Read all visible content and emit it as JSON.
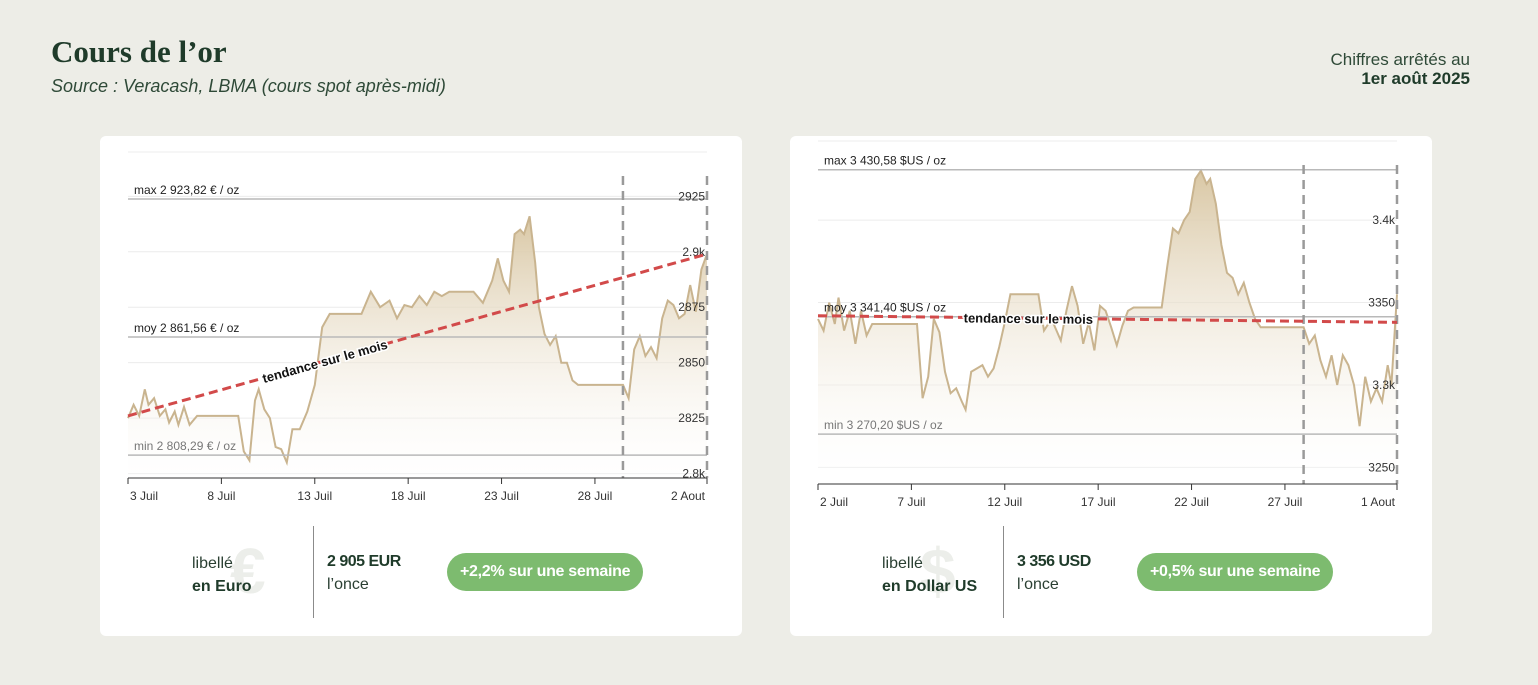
{
  "header": {
    "title": "Cours de l’or",
    "subtitle": "Source : Veracash, LBMA (cours spot après-midi)",
    "as_of_label": "Chiffres arrêtés au",
    "as_of_date": "1er août 2025"
  },
  "colors": {
    "background": "#edede7",
    "area_line": "#c9b48f",
    "area_fill_top": "#d9c7a4",
    "trend": "#d24a4a",
    "badge": "#7dbb6f",
    "title": "#1f3b2a"
  },
  "chart_data": [
    {
      "type": "area",
      "currency": "EUR",
      "x_ticks": [
        "3 Juil",
        "8 Juil",
        "13 Juil",
        "18 Juil",
        "23 Juil",
        "28 Juil",
        "2 Aout"
      ],
      "x_range": [
        0,
        31
      ],
      "y_ticks": [
        "2925",
        "2.9k",
        "2875",
        "2850",
        "2825",
        "2.8k"
      ],
      "y_tick_values": [
        2925,
        2900,
        2875,
        2850,
        2825,
        2800
      ],
      "ylim": [
        2798,
        2945
      ],
      "reference_lines": [
        {
          "label": "max 2 923,82 € / oz",
          "value": 2923.82
        },
        {
          "label": "moy 2 861,56 € / oz",
          "value": 2861.56
        },
        {
          "label": "min 2 808,29 € / oz",
          "value": 2808.29
        }
      ],
      "trend": {
        "label": "tendance sur le mois",
        "x": [
          0,
          31
        ],
        "y": [
          2826,
          2899
        ]
      },
      "vlines": [
        26.5,
        31
      ],
      "x": [
        0,
        0.3,
        0.6,
        0.9,
        1.1,
        1.4,
        1.7,
        2.0,
        2.2,
        2.5,
        2.7,
        3.0,
        3.3,
        3.7,
        4.1,
        4.5,
        5.0,
        5.5,
        5.9,
        6.2,
        6.5,
        6.8,
        7.0,
        7.3,
        7.6,
        7.9,
        8.2,
        8.5,
        8.8,
        9.2,
        9.6,
        10.0,
        10.4,
        10.8,
        11.3,
        11.6,
        12.0,
        12.5,
        13.0,
        13.5,
        14.0,
        14.4,
        14.8,
        15.2,
        15.6,
        16.0,
        16.4,
        16.8,
        17.2,
        17.6,
        18.0,
        18.5,
        19.0,
        19.5,
        19.8,
        20.1,
        20.4,
        20.7,
        21.0,
        21.2,
        21.5,
        21.8,
        22.0,
        22.3,
        22.6,
        22.9,
        23.2,
        23.5,
        23.8,
        24.1,
        24.4,
        24.7,
        25.0,
        25.5,
        26.0,
        26.5,
        26.8,
        27.1,
        27.4,
        27.7,
        28.0,
        28.3,
        28.6,
        28.9,
        29.2,
        29.5,
        29.8,
        30.1,
        30.4,
        30.7,
        31.0
      ],
      "values": [
        2825,
        2831,
        2826,
        2838,
        2831,
        2834,
        2826,
        2829,
        2823,
        2828,
        2822,
        2830,
        2822,
        2826,
        2826,
        2826,
        2826,
        2826,
        2826,
        2810,
        2806,
        2833,
        2838,
        2829,
        2825,
        2812,
        2811,
        2805,
        2820,
        2820,
        2828,
        2840,
        2866,
        2872,
        2872,
        2872,
        2872,
        2872,
        2882,
        2875,
        2878,
        2870,
        2876,
        2875,
        2880,
        2876,
        2882,
        2880,
        2882,
        2882,
        2882,
        2882,
        2877,
        2887,
        2897,
        2887,
        2882,
        2908,
        2910,
        2908,
        2916,
        2895,
        2875,
        2863,
        2858,
        2862,
        2850,
        2850,
        2842,
        2840,
        2840,
        2840,
        2840,
        2840,
        2840,
        2840,
        2834,
        2856,
        2862,
        2853,
        2857,
        2852,
        2870,
        2878,
        2876,
        2870,
        2872,
        2885,
        2873,
        2892,
        2899
      ]
    },
    {
      "type": "area",
      "currency": "USD",
      "x_ticks": [
        "2 Juil",
        "7 Juil",
        "12 Juil",
        "17 Juil",
        "22 Juil",
        "27 Juil",
        "1 Aout"
      ],
      "x_range": [
        0,
        31
      ],
      "y_ticks": [
        "3.4k",
        "3350",
        "3.3k",
        "3250"
      ],
      "y_tick_values": [
        3400,
        3350,
        3300,
        3250
      ],
      "ylim": [
        3246,
        3448
      ],
      "reference_lines": [
        {
          "label": "max 3 430,58 $US / oz",
          "value": 3430.58
        },
        {
          "label": "moy 3 341,40 $US / oz",
          "value": 3341.4
        },
        {
          "label": "min 3 270,20 $US / oz",
          "value": 3270.2
        }
      ],
      "trend": {
        "label": "tendance sur le mois",
        "x": [
          0,
          31
        ],
        "y": [
          3342,
          3338
        ]
      },
      "vlines": [
        26,
        31
      ],
      "x": [
        0,
        0.3,
        0.6,
        0.9,
        1.1,
        1.4,
        1.7,
        2.0,
        2.3,
        2.6,
        2.9,
        3.2,
        3.6,
        4.0,
        4.5,
        5.0,
        5.3,
        5.6,
        5.9,
        6.2,
        6.5,
        6.8,
        7.1,
        7.4,
        7.7,
        7.9,
        8.2,
        8.5,
        8.8,
        9.1,
        9.4,
        9.7,
        10.0,
        10.3,
        10.6,
        10.9,
        11.2,
        11.5,
        11.8,
        12.1,
        12.5,
        13.0,
        13.3,
        13.6,
        13.9,
        14.2,
        14.5,
        14.8,
        15.1,
        15.4,
        15.7,
        16.0,
        16.3,
        16.6,
        16.9,
        17.2,
        17.5,
        17.8,
        18.1,
        18.4,
        18.7,
        19.0,
        19.3,
        19.6,
        19.9,
        20.2,
        20.5,
        20.8,
        21.0,
        21.3,
        21.6,
        21.9,
        22.2,
        22.5,
        22.8,
        23.1,
        23.4,
        23.7,
        24.0,
        24.3,
        24.6,
        25.0,
        25.5,
        26.0,
        26.3,
        26.6,
        26.9,
        27.2,
        27.5,
        27.8,
        28.1,
        28.4,
        28.7,
        29.0,
        29.3,
        29.6,
        29.9,
        30.2,
        30.5,
        30.7,
        31.0
      ],
      "values": [
        3340,
        3333,
        3350,
        3337,
        3353,
        3333,
        3345,
        3325,
        3345,
        3330,
        3337,
        3337,
        3337,
        3337,
        3337,
        3337,
        3337,
        3292,
        3305,
        3340,
        3332,
        3308,
        3295,
        3298,
        3290,
        3285,
        3308,
        3310,
        3312,
        3305,
        3310,
        3323,
        3338,
        3355,
        3355,
        3355,
        3355,
        3355,
        3355,
        3333,
        3340,
        3327,
        3345,
        3360,
        3348,
        3325,
        3338,
        3321,
        3348,
        3345,
        3335,
        3324,
        3336,
        3345,
        3347,
        3347,
        3347,
        3347,
        3347,
        3347,
        3372,
        3395,
        3392,
        3400,
        3405,
        3425,
        3430,
        3422,
        3425,
        3410,
        3385,
        3368,
        3365,
        3355,
        3362,
        3350,
        3340,
        3335,
        3335,
        3335,
        3335,
        3335,
        3335,
        3335,
        3325,
        3330,
        3315,
        3305,
        3318,
        3300,
        3318,
        3312,
        3300,
        3275,
        3305,
        3290,
        3298,
        3290,
        3312,
        3300,
        3355
      ]
    }
  ],
  "cards": [
    {
      "labelled": "libellé",
      "currency_name": "en Euro",
      "symbol": "€",
      "price": "2 905 EUR",
      "unit": "l’once",
      "badge": "+2,2% sur une semaine"
    },
    {
      "labelled": "libellé",
      "currency_name": "en Dollar US",
      "symbol": "$",
      "price": "3 356 USD",
      "unit": "l’once",
      "badge": "+0,5% sur une semaine"
    }
  ]
}
